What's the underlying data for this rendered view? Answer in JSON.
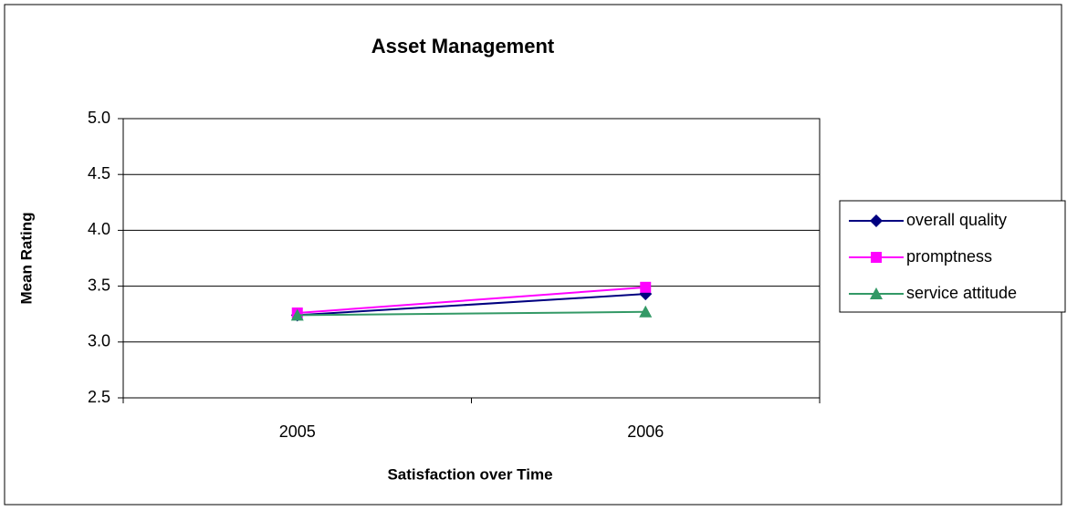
{
  "chart_data": {
    "type": "line",
    "title": "Asset Management",
    "x_label": "Satisfaction over Time",
    "y_label": "Mean Rating",
    "categories": [
      "2005",
      "2006"
    ],
    "series": [
      {
        "name": "overall quality",
        "color": "#000080",
        "marker": "diamond",
        "values": [
          3.24,
          3.43
        ]
      },
      {
        "name": "promptness",
        "color": "#ff00ff",
        "marker": "square",
        "values": [
          3.26,
          3.49
        ]
      },
      {
        "name": "service attitude",
        "color": "#339966",
        "marker": "triangle",
        "values": [
          3.24,
          3.27
        ]
      }
    ],
    "ylim": [
      2.5,
      5.0
    ],
    "yticks": [
      {
        "value": 2.5,
        "label": "2.5"
      },
      {
        "value": 3.0,
        "label": "3.0"
      },
      {
        "value": 3.5,
        "label": "3.5"
      },
      {
        "value": 4.0,
        "label": "4.0"
      },
      {
        "value": 4.5,
        "label": "4.5"
      },
      {
        "value": 5.0,
        "label": "5.0"
      }
    ],
    "grid": true,
    "legend": "right"
  }
}
